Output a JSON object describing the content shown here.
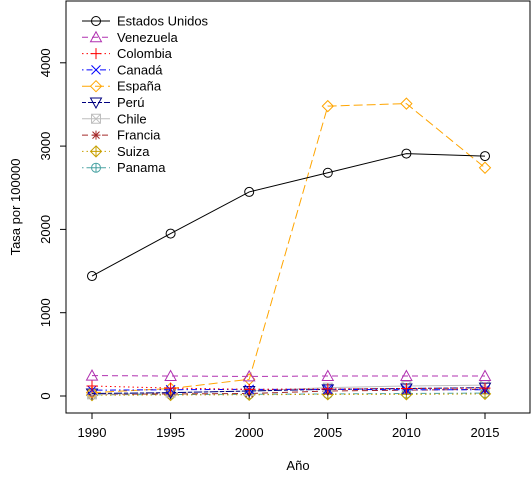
{
  "chart_data": {
    "type": "line",
    "title": "",
    "xlabel": "Año",
    "ylabel": "Tasa por 100000",
    "x": [
      1990,
      1995,
      2000,
      2005,
      2010,
      2015
    ],
    "x_ticks": [
      "1990",
      "1995",
      "2000",
      "2005",
      "2010",
      "2015"
    ],
    "y_ticks": [
      "0",
      "1000",
      "2000",
      "3000",
      "4000"
    ],
    "xlim": [
      1990,
      2015
    ],
    "ylim": [
      0,
      4400
    ],
    "grid": false,
    "legend_position": "top-left",
    "series": [
      {
        "name": "Estados Unidos",
        "values": [
          1440,
          1950,
          2450,
          2680,
          2910,
          2880
        ],
        "color": "#000000",
        "dash": "solid",
        "marker": "circle"
      },
      {
        "name": "Venezuela",
        "values": [
          245,
          240,
          235,
          240,
          240,
          240
        ],
        "color": "#b030b0",
        "dash": "dashed",
        "marker": "triangle-up"
      },
      {
        "name": "Colombia",
        "values": [
          120,
          95,
          80,
          85,
          90,
          95
        ],
        "color": "#ff0000",
        "dash": "dotted",
        "marker": "plus"
      },
      {
        "name": "Canadá",
        "values": [
          70,
          75,
          80,
          80,
          75,
          75
        ],
        "color": "#0000ff",
        "dash": "dotdash",
        "marker": "x"
      },
      {
        "name": "España",
        "values": [
          40,
          90,
          200,
          3480,
          3510,
          2740
        ],
        "color": "#ffa500",
        "dash": "longdash",
        "marker": "diamond"
      },
      {
        "name": "Perú",
        "values": [
          30,
          40,
          60,
          80,
          90,
          100
        ],
        "color": "#000080",
        "dash": "twodash",
        "marker": "triangle-down"
      },
      {
        "name": "Chile",
        "values": [
          20,
          40,
          60,
          100,
          120,
          130
        ],
        "color": "#bebebe",
        "dash": "solid",
        "marker": "square-x"
      },
      {
        "name": "Francia",
        "values": [
          20,
          25,
          30,
          60,
          70,
          80
        ],
        "color": "#a52a2a",
        "dash": "dashed",
        "marker": "asterisk"
      },
      {
        "name": "Suiza",
        "values": [
          10,
          12,
          15,
          20,
          20,
          25
        ],
        "color": "#c8a000",
        "dash": "dotted",
        "marker": "diamond-plus"
      },
      {
        "name": "Panama",
        "values": [
          15,
          18,
          20,
          25,
          30,
          35
        ],
        "color": "#4aa3a3",
        "dash": "dotdash",
        "marker": "circle-plus"
      }
    ]
  }
}
